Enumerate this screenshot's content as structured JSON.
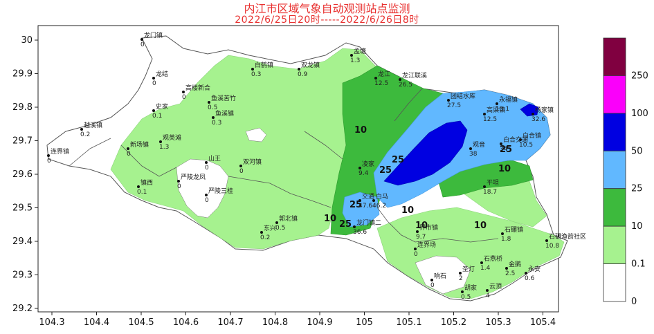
{
  "title": {
    "line1": "内江市区域气象自动观测站点监测",
    "line2": "2022/6/25日20时-----2022/6/26日8时"
  },
  "axes": {
    "x_ticks": [
      "104.3",
      "104.4",
      "104.5",
      "104.6",
      "104.7",
      "104.8",
      "104.9",
      "105",
      "105.1",
      "105.2",
      "105.3",
      "105.4"
    ],
    "y_ticks": [
      "30",
      "29.9",
      "29.8",
      "29.7",
      "29.6",
      "29.5",
      "29.4",
      "29.3",
      "29.2"
    ]
  },
  "legend": {
    "levels": [
      {
        "label": "0",
        "color": "#ffffff"
      },
      {
        "label": "0.1",
        "color": "#a6f28f"
      },
      {
        "label": "10",
        "color": "#3dba3d"
      },
      {
        "label": "25",
        "color": "#61b8ff"
      },
      {
        "label": "50",
        "color": "#0000e1"
      },
      {
        "label": "100",
        "color": "#fa00fa"
      },
      {
        "label": "250",
        "color": "#800040"
      }
    ],
    "colors": [
      "#ffffff",
      "#a6f28f",
      "#3dba3d",
      "#61b8ff",
      "#0000e1",
      "#fa00fa",
      "#800040"
    ]
  },
  "contour_labels": [
    "10",
    "10",
    "25",
    "25",
    "25",
    "10",
    "25",
    "10",
    "10",
    "25",
    "10"
  ],
  "stations": [
    {
      "name": "龙门镇",
      "value": "0"
    },
    {
      "name": "龙结",
      "value": "0"
    },
    {
      "name": "高楼新合",
      "value": "0"
    },
    {
      "name": "史家",
      "value": "0.1"
    },
    {
      "name": "鱼溪苦竹",
      "value": "0.5"
    },
    {
      "name": "鱼溪镇",
      "value": "0.3"
    },
    {
      "name": "白鹤镇",
      "value": "0.3"
    },
    {
      "name": "双龙镇",
      "value": "0.9"
    },
    {
      "name": "孟塘",
      "value": "1.3"
    },
    {
      "name": "龙江",
      "value": "12.5"
    },
    {
      "name": "龙江联溪",
      "value": "26.5"
    },
    {
      "name": "团结水库",
      "value": "27.5"
    },
    {
      "name": "永福镇",
      "value": "13.1"
    },
    {
      "name": "杨家镇",
      "value": "32.6"
    },
    {
      "name": "高梁镇",
      "value": "12.5"
    },
    {
      "name": "白合镇",
      "value": "10.5"
    },
    {
      "name": "白合交通",
      "value": "34"
    },
    {
      "name": "连界镇",
      "value": "0"
    },
    {
      "name": "越溪镇",
      "value": "0.2"
    },
    {
      "name": "新场镇",
      "value": "0"
    },
    {
      "name": "观英滩",
      "value": "1.3"
    },
    {
      "name": "山王",
      "value": "0"
    },
    {
      "name": "双河镇",
      "value": "0"
    },
    {
      "name": "镇西",
      "value": "0.1"
    },
    {
      "name": "严陵龙凤",
      "value": "0"
    },
    {
      "name": "严陵三桂",
      "value": "0"
    },
    {
      "name": "郭北镇",
      "value": "0.5"
    },
    {
      "name": "东兴",
      "value": "0.2"
    },
    {
      "name": "凌家",
      "value": "9.4"
    },
    {
      "name": "交通",
      "value": "47.6"
    },
    {
      "name": "白马",
      "value": "46.2"
    },
    {
      "name": "龙门镇二",
      "value": "36.6"
    },
    {
      "name": "石燕桥",
      "value": "1.4"
    },
    {
      "name": "连界场",
      "value": "0"
    },
    {
      "name": "界市镇",
      "value": "9.7"
    },
    {
      "name": "石碾镇",
      "value": "1.8"
    },
    {
      "name": "金鹅",
      "value": "2.5"
    },
    {
      "name": "圣灯",
      "value": "2"
    },
    {
      "name": "响石",
      "value": "0"
    },
    {
      "name": "胡家",
      "value": "0.5"
    },
    {
      "name": "云顶",
      "value": "4"
    },
    {
      "name": "石碾渔箭社区",
      "value": "10.8"
    },
    {
      "name": "永安",
      "value": "0.6"
    },
    {
      "name": "观音",
      "value": "38"
    },
    {
      "name": "平坦",
      "value": "18.7"
    }
  ]
}
